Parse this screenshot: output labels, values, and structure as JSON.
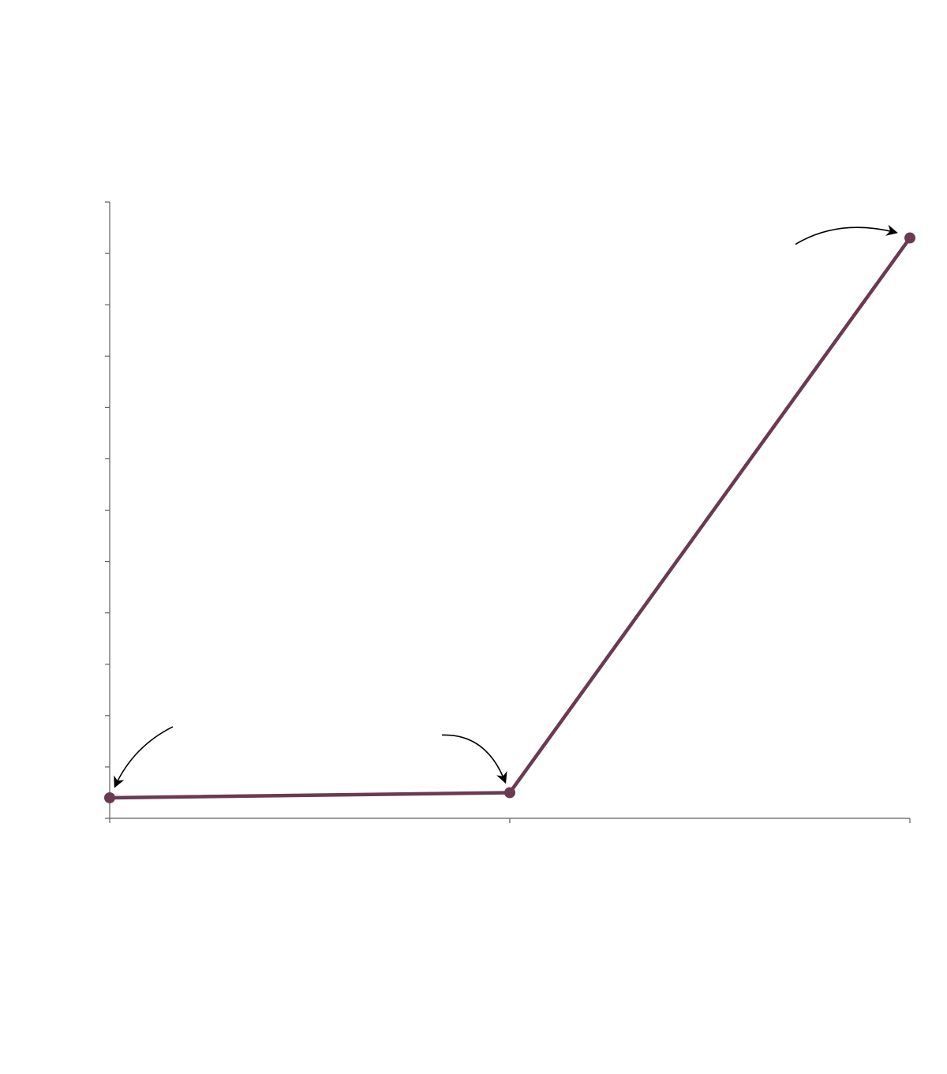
{
  "chart_data": {
    "type": "line",
    "title": "",
    "xlabel": "",
    "ylabel": "",
    "x_categories": 3,
    "y_range": [
      0,
      12
    ],
    "y_major_tick_count": 13,
    "grid": false,
    "legend": "none",
    "series": [
      {
        "values": [
          0.4,
          0.5,
          11.3
        ],
        "color": "#6b3a52"
      }
    ],
    "annotations": [
      {
        "point_index": 0,
        "kind": "arrow",
        "text": ""
      },
      {
        "point_index": 1,
        "kind": "arrow",
        "text": ""
      },
      {
        "point_index": 2,
        "kind": "arrow",
        "text": ""
      }
    ]
  }
}
